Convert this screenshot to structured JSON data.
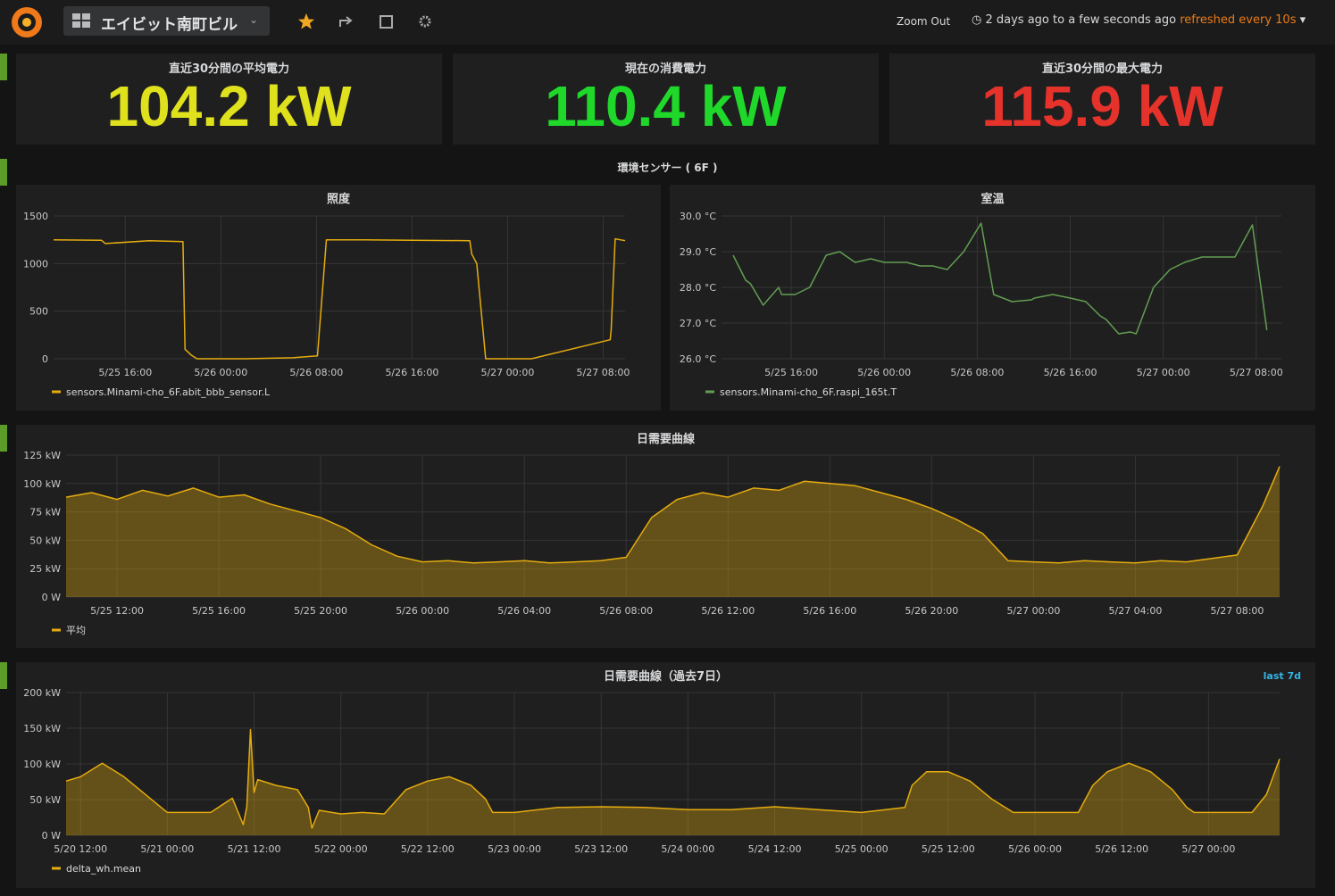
{
  "header": {
    "dashboard_title": "エイビット南町ビル",
    "zoom_out": "Zoom Out",
    "time_range": "2 days ago to a few seconds ago",
    "refresh": "refreshed every 10s"
  },
  "stats": [
    {
      "title": "直近30分間の平均電力",
      "value": "104.2 kW",
      "color": "#e0e11d"
    },
    {
      "title": "現在の消費電力",
      "value": "110.4 kW",
      "color": "#1fd82a"
    },
    {
      "title": "直近30分間の最大電力",
      "value": "115.9 kW",
      "color": "#e5322b"
    }
  ],
  "row_title": "環境センサー ( 6F )",
  "chart_data": [
    {
      "type": "line",
      "title": "照度",
      "xlim": [
        "5/25 10:00",
        "5/27 09:50"
      ],
      "ylim": [
        0,
        1500
      ],
      "yticks": [
        0,
        500,
        1000,
        1500
      ],
      "grid": true,
      "xticks": [
        "5/25 16:00",
        "5/26 00:00",
        "5/26 08:00",
        "5/26 16:00",
        "5/27 00:00",
        "5/27 08:00"
      ],
      "x": [
        "5/25 10:00",
        "5/25 14:00",
        "5/25 14:20",
        "5/25 18:00",
        "5/25 20:50",
        "5/25 21:00",
        "5/25 21:30",
        "5/25 22:00",
        "5/26 02:00",
        "5/26 06:00",
        "5/26 08:05",
        "5/26 08:50",
        "5/26 12:00",
        "5/26 16:00",
        "5/26 20:50",
        "5/26 21:00",
        "5/26 21:25",
        "5/26 22:10",
        "5/27 02:00",
        "5/27 08:35",
        "5/27 08:40",
        "5/27 09:00",
        "5/27 09:50"
      ],
      "series": [
        {
          "name": "sensors.Minami-cho_6F.abit_bbb_sensor.L",
          "color": "#e5ac0e",
          "values": [
            1250,
            1245,
            1210,
            1240,
            1230,
            100,
            40,
            0,
            0,
            10,
            30,
            1250,
            1250,
            1245,
            1240,
            1100,
            1000,
            0,
            0,
            200,
            300,
            1260,
            1240
          ]
        }
      ]
    },
    {
      "type": "line",
      "title": "室温",
      "xlim": [
        "5/25 10:00",
        "5/27 10:10"
      ],
      "ylim": [
        26,
        30
      ],
      "grid": true,
      "yticks": [
        {
          "value": 26,
          "label": "26.0 °C"
        },
        {
          "value": 27,
          "label": "27.0 °C"
        },
        {
          "value": 28,
          "label": "28.0 °C"
        },
        {
          "value": 29,
          "label": "29.0 °C"
        },
        {
          "value": 30,
          "label": "30.0 °C"
        }
      ],
      "xticks": [
        "5/25 16:00",
        "5/26 00:00",
        "5/26 08:00",
        "5/26 16:00",
        "5/27 00:00",
        "5/27 08:00"
      ],
      "x": [
        "5/25 11:00",
        "5/25 12:05",
        "5/25 12:30",
        "5/25 13:35",
        "5/25 14:55",
        "5/25 15:10",
        "5/25 16:20",
        "5/25 17:35",
        "5/25 19:00",
        "5/25 20:10",
        "5/25 21:30",
        "5/25 22:50",
        "5/26 00:00",
        "5/26 01:55",
        "5/26 03:05",
        "5/26 04:10",
        "5/26 05:25",
        "5/26 06:50",
        "5/26 08:20",
        "5/26 09:25",
        "5/26 11:00",
        "5/26 12:40",
        "5/26 12:55",
        "5/26 14:30",
        "5/26 16:00",
        "5/26 17:20",
        "5/26 18:35",
        "5/26 19:05",
        "5/26 20:10",
        "5/26 21:10",
        "5/26 21:40",
        "5/26 23:10",
        "5/27 00:35",
        "5/27 01:50",
        "5/27 03:20",
        "5/27 06:10",
        "5/27 07:40",
        "5/27 08:55"
      ],
      "series": [
        {
          "name": "sensors.Minami-cho_6F.raspi_165t.T",
          "color": "#629e51",
          "values": [
            28.9,
            28.2,
            28.1,
            27.5,
            28.0,
            27.8,
            27.8,
            28.0,
            28.9,
            29.0,
            28.7,
            28.8,
            28.7,
            28.7,
            28.6,
            28.6,
            28.5,
            29.0,
            29.8,
            27.8,
            27.6,
            27.65,
            27.7,
            27.8,
            27.7,
            27.6,
            27.2,
            27.1,
            26.7,
            26.75,
            26.7,
            28.0,
            28.5,
            28.7,
            28.85,
            28.85,
            29.75,
            26.8
          ]
        }
      ]
    },
    {
      "type": "area",
      "title": "日需要曲線",
      "xlim": [
        "5/25 10:00",
        "5/27 09:40"
      ],
      "ylim": [
        0,
        125
      ],
      "grid": true,
      "yticks": [
        {
          "value": 0,
          "label": "0 W"
        },
        {
          "value": 25,
          "label": "25 kW"
        },
        {
          "value": 50,
          "label": "50 kW"
        },
        {
          "value": 75,
          "label": "75 kW"
        },
        {
          "value": 100,
          "label": "100 kW"
        },
        {
          "value": 125,
          "label": "125 kW"
        }
      ],
      "xticks": [
        "5/25 12:00",
        "5/25 16:00",
        "5/25 20:00",
        "5/26 00:00",
        "5/26 04:00",
        "5/26 08:00",
        "5/26 12:00",
        "5/26 16:00",
        "5/26 20:00",
        "5/27 00:00",
        "5/27 04:00",
        "5/27 08:00"
      ],
      "x": [
        "5/25 10:00",
        "5/25 11:00",
        "5/25 12:00",
        "5/25 13:00",
        "5/25 14:00",
        "5/25 15:00",
        "5/25 16:00",
        "5/25 17:00",
        "5/25 18:00",
        "5/25 19:00",
        "5/25 20:00",
        "5/25 21:00",
        "5/25 22:00",
        "5/25 23:00",
        "5/26 00:00",
        "5/26 01:00",
        "5/26 02:00",
        "5/26 03:00",
        "5/26 04:00",
        "5/26 05:00",
        "5/26 06:00",
        "5/26 07:00",
        "5/26 08:00",
        "5/26 09:00",
        "5/26 10:00",
        "5/26 11:00",
        "5/26 12:00",
        "5/26 13:00",
        "5/26 14:00",
        "5/26 15:00",
        "5/26 16:00",
        "5/26 17:00",
        "5/26 18:00",
        "5/26 19:00",
        "5/26 20:00",
        "5/26 21:00",
        "5/26 22:00",
        "5/26 23:00",
        "5/27 00:00",
        "5/27 01:00",
        "5/27 02:00",
        "5/27 03:00",
        "5/27 04:00",
        "5/27 05:00",
        "5/27 06:00",
        "5/27 07:00",
        "5/27 08:00",
        "5/27 09:00",
        "5/27 09:40"
      ],
      "series": [
        {
          "name": "平均",
          "color": "#e5ac0e",
          "values": [
            88,
            92,
            86,
            94,
            89,
            96,
            88,
            90,
            82,
            76,
            70,
            60,
            46,
            36,
            31,
            32,
            30,
            31,
            32,
            30,
            31,
            32,
            35,
            70,
            86,
            92,
            88,
            96,
            94,
            102,
            100,
            98,
            92,
            86,
            78,
            68,
            56,
            32,
            31,
            30,
            32,
            31,
            30,
            32,
            31,
            34,
            37,
            80,
            115
          ]
        }
      ]
    },
    {
      "type": "area",
      "title": "日需要曲線（過去7日）",
      "annotation": "last 7d",
      "xlim": [
        "5/20 10:00",
        "5/27 09:50"
      ],
      "ylim": [
        0,
        200
      ],
      "grid": true,
      "yticks": [
        {
          "value": 0,
          "label": "0 W"
        },
        {
          "value": 50,
          "label": "50 kW"
        },
        {
          "value": 100,
          "label": "100 kW"
        },
        {
          "value": 150,
          "label": "150 kW"
        },
        {
          "value": 200,
          "label": "200 kW"
        }
      ],
      "xticks": [
        "5/20 12:00",
        "5/21 00:00",
        "5/21 12:00",
        "5/22 00:00",
        "5/22 12:00",
        "5/23 00:00",
        "5/23 12:00",
        "5/24 00:00",
        "5/24 12:00",
        "5/25 00:00",
        "5/25 12:00",
        "5/26 00:00",
        "5/26 12:00",
        "5/27 00:00"
      ],
      "x": [
        "5/20 10:00",
        "5/20 12:00",
        "5/20 15:00",
        "5/20 18:00",
        "5/20 21:00",
        "5/21 00:00",
        "5/21 03:00",
        "5/21 06:00",
        "5/21 09:00",
        "5/21 10:30",
        "5/21 11:00",
        "5/21 11:30",
        "5/21 12:00",
        "5/21 12:30",
        "5/21 15:00",
        "5/21 18:00",
        "5/21 19:30",
        "5/21 20:00",
        "5/21 21:00",
        "5/22 00:00",
        "5/22 03:00",
        "5/22 06:00",
        "5/22 09:00",
        "5/22 12:00",
        "5/22 15:00",
        "5/22 18:00",
        "5/22 20:00",
        "5/22 21:00",
        "5/23 00:00",
        "5/23 06:00",
        "5/23 12:00",
        "5/23 18:00",
        "5/24 00:00",
        "5/24 06:00",
        "5/24 12:00",
        "5/24 18:00",
        "5/25 00:00",
        "5/25 06:00",
        "5/25 07:00",
        "5/25 09:00",
        "5/25 12:00",
        "5/25 15:00",
        "5/25 18:00",
        "5/25 21:00",
        "5/26 00:00",
        "5/26 06:00",
        "5/26 08:00",
        "5/26 10:00",
        "5/26 13:00",
        "5/26 16:00",
        "5/26 19:00",
        "5/26 21:00",
        "5/26 22:00",
        "5/27 00:00",
        "5/27 06:00",
        "5/27 08:00",
        "5/27 09:50"
      ],
      "series": [
        {
          "name": "delta_wh.mean",
          "color": "#e5ac0e",
          "values": [
            76,
            82,
            101,
            82,
            57,
            32,
            32,
            32,
            52,
            15,
            40,
            148,
            60,
            78,
            70,
            64,
            39,
            10,
            35,
            30,
            32,
            30,
            64,
            76,
            82,
            70,
            51,
            32,
            32,
            39,
            40,
            39,
            36,
            36,
            40,
            36,
            32,
            39,
            70,
            89,
            89,
            76,
            51,
            32,
            32,
            32,
            70,
            89,
            101,
            89,
            64,
            39,
            32,
            32,
            32,
            57,
            107
          ]
        }
      ]
    }
  ]
}
